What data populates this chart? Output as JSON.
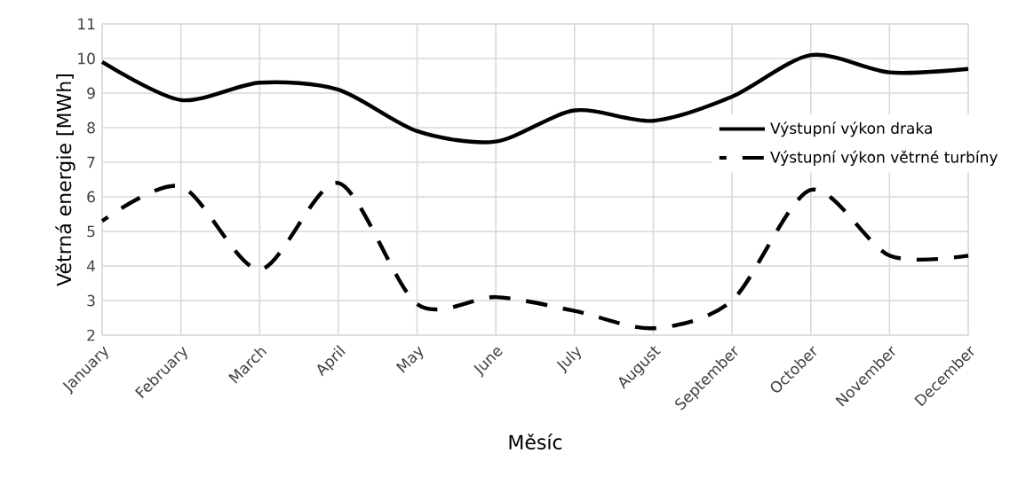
{
  "chart_data": {
    "type": "line",
    "xlabel": "Měsíc",
    "ylabel": "Větrná energie [MWh]",
    "categories": [
      "January",
      "February",
      "March",
      "April",
      "May",
      "June",
      "July",
      "August",
      "September",
      "October",
      "November",
      "December"
    ],
    "series": [
      {
        "name": "Výstupní výkon draka",
        "color": "#000000",
        "line_style": "solid",
        "values": [
          9.9,
          8.8,
          9.3,
          9.1,
          7.9,
          7.6,
          8.5,
          8.2,
          8.9,
          10.1,
          9.6,
          9.7
        ]
      },
      {
        "name": "Výstupní výkon větrné turbíny",
        "color": "#000000",
        "line_style": "dashed",
        "values": [
          5.3,
          6.3,
          3.9,
          6.4,
          2.9,
          3.1,
          2.7,
          2.2,
          3.0,
          6.2,
          4.3,
          4.3
        ]
      }
    ],
    "ylim": [
      2,
      11
    ],
    "yticks": [
      2,
      3,
      4,
      5,
      6,
      7,
      8,
      9,
      10,
      11
    ],
    "grid": true,
    "legend": "right",
    "marker": "none"
  }
}
